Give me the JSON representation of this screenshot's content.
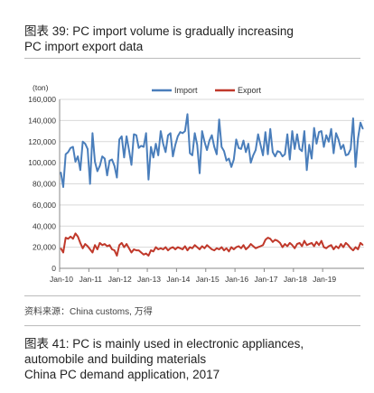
{
  "figure": {
    "title": "图表 39: PC import volume is gradually increasing",
    "subtitle": "PC import export data",
    "source": "资料来源：China customs, 万得"
  },
  "next_figure": {
    "title_line1": "图表 41: PC is mainly used in electronic appliances,",
    "title_line2": "automobile and building materials",
    "subtitle": "China PC demand application, 2017"
  },
  "chart_data": {
    "type": "line",
    "unit_label": "(ton)",
    "ylim": [
      0,
      160000
    ],
    "y_ticks": [
      "0",
      "20,000",
      "40,000",
      "60,000",
      "80,000",
      "100,000",
      "120,000",
      "140,000",
      "160,000"
    ],
    "x_tick_labels": [
      "Jan-10",
      "Jan-11",
      "Jan-12",
      "Jan-13",
      "Jan-14",
      "Jan-15",
      "Jan-16",
      "Jan-17",
      "Jan-18",
      "Jan-19"
    ],
    "x_start": "2010-01",
    "grid": true,
    "legend_position": "top-center",
    "series": [
      {
        "name": "Import",
        "color": "#4a7ebb",
        "values": [
          91000,
          77000,
          108000,
          110000,
          114000,
          115000,
          101000,
          106000,
          93000,
          120000,
          118000,
          113000,
          80000,
          128000,
          101000,
          92000,
          97000,
          106000,
          104000,
          88000,
          102000,
          103000,
          97000,
          86000,
          122000,
          125000,
          105000,
          125000,
          112000,
          98000,
          127000,
          126000,
          114000,
          116000,
          115000,
          128000,
          84000,
          115000,
          105000,
          118000,
          107000,
          130000,
          118000,
          110000,
          126000,
          128000,
          106000,
          117000,
          125000,
          129000,
          128000,
          130000,
          146000,
          109000,
          107000,
          128000,
          117000,
          90000,
          130000,
          120000,
          112000,
          121000,
          126000,
          115000,
          108000,
          141000,
          115000,
          111000,
          102000,
          104000,
          96000,
          103000,
          122000,
          114000,
          113000,
          121000,
          110000,
          118000,
          100000,
          107000,
          112000,
          127000,
          117000,
          107000,
          129000,
          108000,
          132000,
          110000,
          106000,
          111000,
          110000,
          106000,
          108000,
          127000,
          103000,
          130000,
          113000,
          127000,
          113000,
          111000,
          130000,
          93000,
          117000,
          104000,
          133000,
          118000,
          129000,
          130000,
          115000,
          126000,
          120000,
          132000,
          109000,
          128000,
          122000,
          113000,
          117000,
          107000,
          108000,
          113000,
          142000,
          96000,
          123000,
          138000,
          132000
        ]
      },
      {
        "name": "Export",
        "color": "#c0392b",
        "values": [
          19000,
          15000,
          29000,
          28000,
          30000,
          28000,
          33000,
          30000,
          24000,
          19000,
          23000,
          21000,
          18000,
          15000,
          22000,
          18000,
          24000,
          22000,
          23000,
          21000,
          22000,
          18000,
          17000,
          12000,
          22000,
          24000,
          20000,
          23000,
          19000,
          15000,
          18000,
          17000,
          17000,
          15000,
          13000,
          14000,
          12000,
          17000,
          16000,
          20000,
          18000,
          19000,
          18000,
          20000,
          17000,
          19000,
          20000,
          18000,
          20000,
          19000,
          18000,
          21000,
          17000,
          20000,
          19000,
          22000,
          20000,
          18000,
          21000,
          19000,
          22000,
          20000,
          18000,
          17000,
          19000,
          18000,
          20000,
          17000,
          19000,
          16000,
          20000,
          18000,
          20000,
          21000,
          19000,
          22000,
          18000,
          20000,
          23000,
          21000,
          19000,
          20000,
          21000,
          22000,
          27000,
          29000,
          28000,
          25000,
          27000,
          26000,
          24000,
          20000,
          23000,
          21000,
          24000,
          22000,
          19000,
          23000,
          24000,
          21000,
          26000,
          22000,
          23000,
          24000,
          21000,
          25000,
          22000,
          26000,
          20000,
          19000,
          21000,
          22000,
          18000,
          21000,
          19000,
          23000,
          20000,
          24000,
          22000,
          19000,
          17000,
          20000,
          18000,
          24000,
          22000
        ]
      }
    ]
  }
}
